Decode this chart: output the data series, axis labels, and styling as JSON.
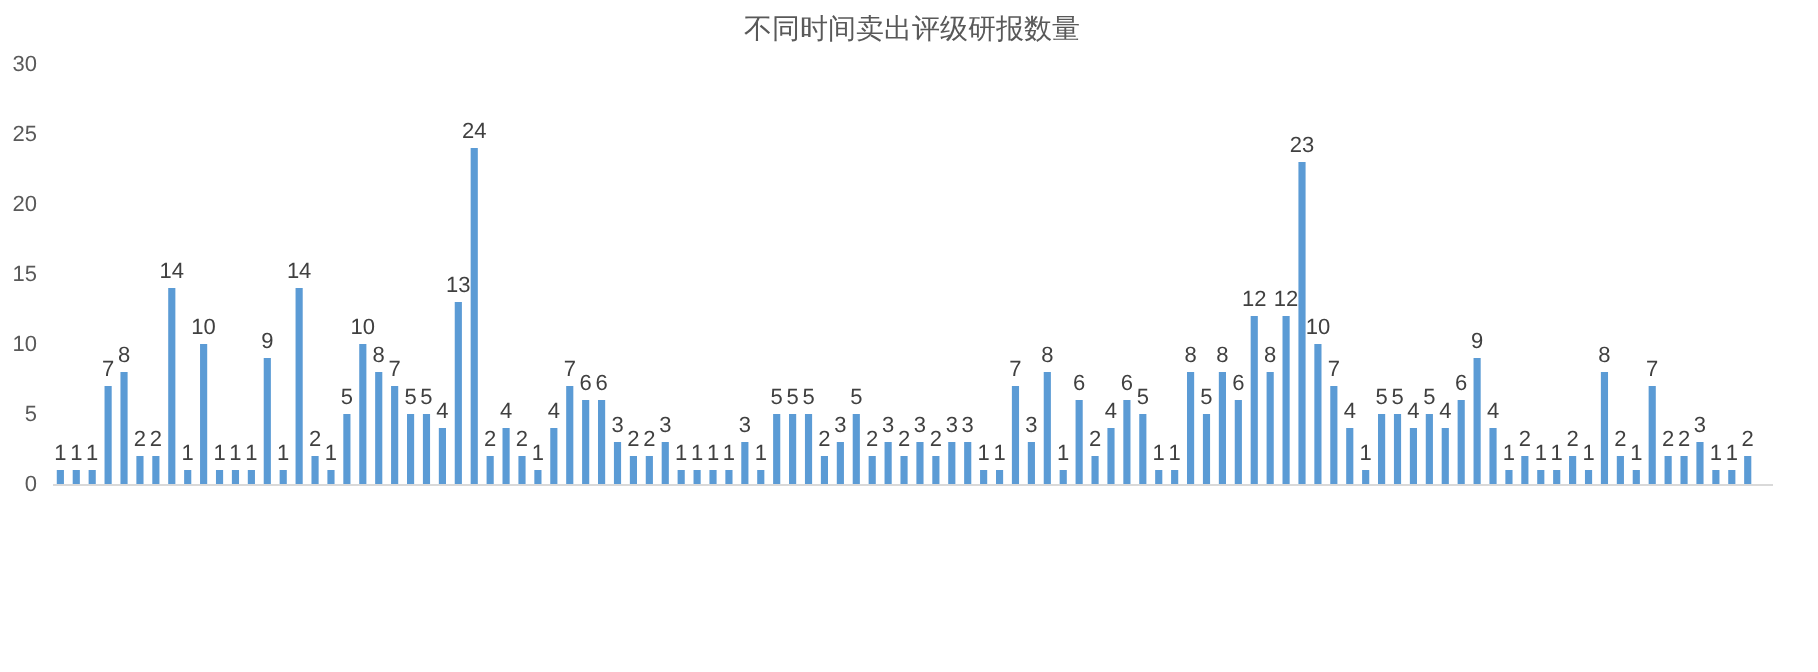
{
  "chart_data": {
    "type": "bar",
    "title": "不同时间卖出评级研报数量",
    "categories": [
      null,
      null,
      null,
      null,
      null,
      null,
      null,
      null,
      null,
      null,
      null,
      null,
      null,
      null,
      null,
      null,
      null,
      null,
      null,
      null,
      null,
      null,
      null,
      null,
      null,
      null,
      null,
      null,
      null,
      null,
      null,
      null,
      null,
      null,
      null,
      null,
      null,
      null,
      null,
      null,
      null,
      null,
      null,
      null,
      null,
      null,
      null,
      null,
      null,
      null,
      null,
      null,
      null,
      null,
      null,
      null,
      null,
      null,
      null,
      null,
      null,
      null,
      null,
      null,
      null,
      null,
      null,
      null,
      null,
      null,
      null,
      null,
      null,
      null,
      null,
      null,
      null,
      null,
      null,
      null,
      null,
      null,
      null,
      null,
      null,
      null,
      null,
      null,
      null,
      null,
      null,
      null,
      null,
      null,
      null,
      null,
      null,
      null,
      null,
      null,
      null,
      null,
      null,
      null,
      null,
      null,
      null,
      null
    ],
    "values": [
      1,
      1,
      1,
      7,
      8,
      2,
      2,
      14,
      1,
      10,
      1,
      1,
      1,
      9,
      1,
      14,
      2,
      1,
      5,
      10,
      8,
      7,
      5,
      5,
      4,
      13,
      24,
      2,
      4,
      2,
      1,
      4,
      7,
      6,
      6,
      3,
      2,
      2,
      3,
      1,
      1,
      1,
      1,
      3,
      1,
      5,
      5,
      5,
      2,
      3,
      5,
      2,
      3,
      2,
      3,
      2,
      3,
      3,
      1,
      1,
      7,
      3,
      8,
      1,
      6,
      2,
      4,
      6,
      5,
      1,
      1,
      8,
      5,
      8,
      6,
      12,
      8,
      12,
      23,
      10,
      7,
      4,
      1,
      5,
      5,
      4,
      5,
      4,
      6,
      9,
      4,
      1,
      2,
      1,
      1,
      2,
      1,
      8,
      2,
      1,
      7,
      2,
      2,
      3,
      1,
      1,
      2,
      null
    ],
    "color": "#5b9bd5",
    "ylim": [
      0,
      30
    ],
    "yticks": [
      0,
      5,
      10,
      15,
      20,
      25,
      30
    ],
    "grid": false,
    "data_labels": true
  }
}
